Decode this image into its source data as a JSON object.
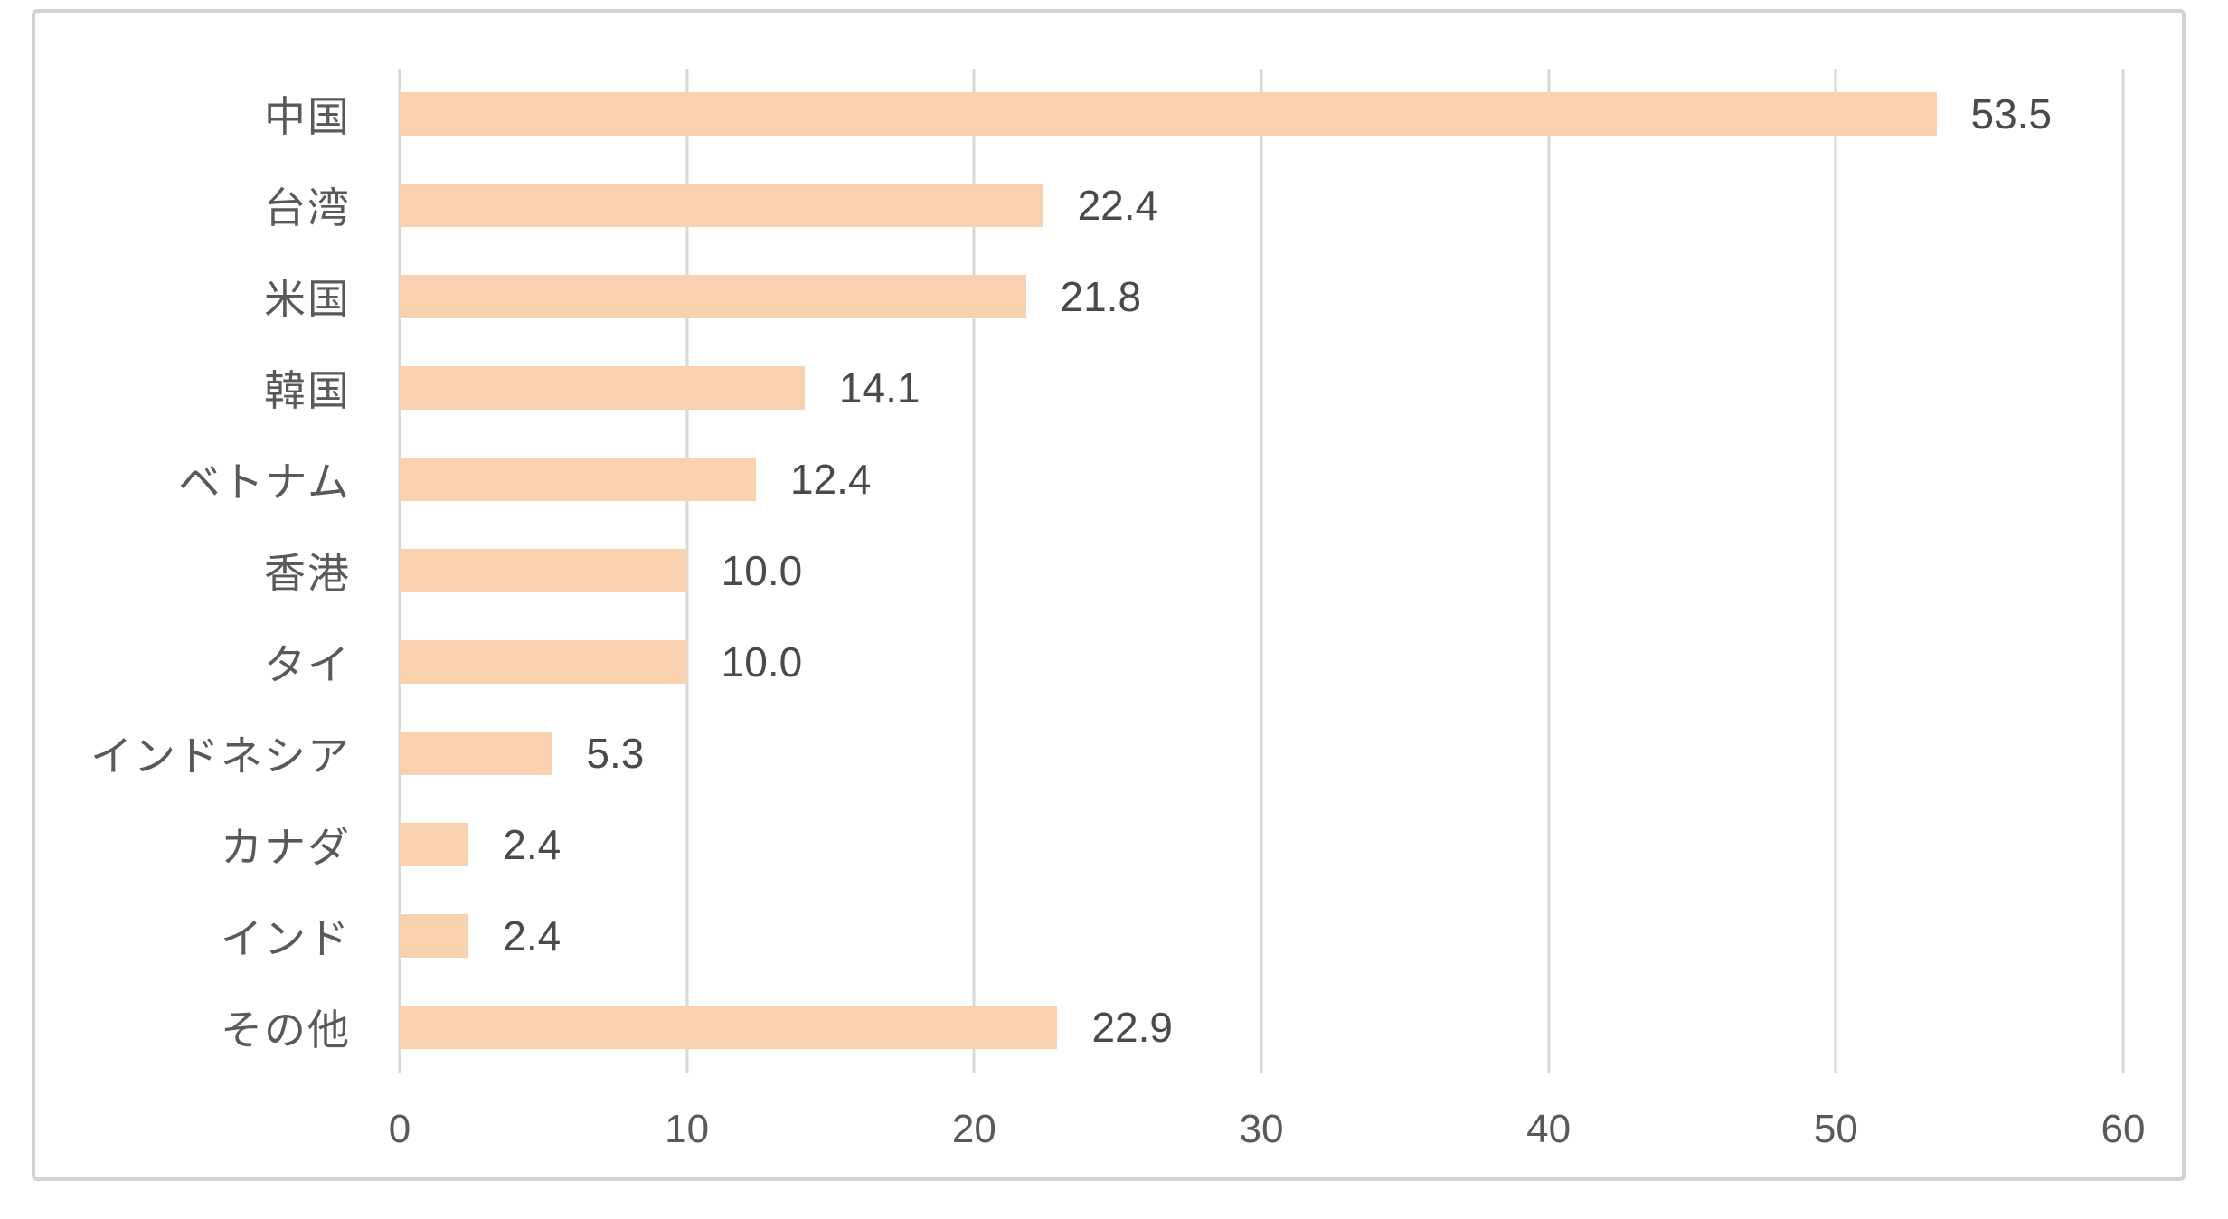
{
  "chart_data": {
    "type": "bar",
    "orientation": "horizontal",
    "title": "",
    "xlabel": "",
    "ylabel": "",
    "categories": [
      "中国",
      "台湾",
      "米国",
      "韓国",
      "ベトナム",
      "香港",
      "タイ",
      "インドネシア",
      "カナダ",
      "インド",
      "その他"
    ],
    "values": [
      53.5,
      22.4,
      21.8,
      14.1,
      12.4,
      10.0,
      10.0,
      5.3,
      2.4,
      2.4,
      22.9
    ],
    "value_labels": [
      "53.5",
      "22.4",
      "21.8",
      "14.1",
      "12.4",
      "10.0",
      "10.0",
      "5.3",
      "2.4",
      "2.4",
      "22.9"
    ],
    "xlim": [
      0,
      60
    ],
    "x_ticks": [
      0,
      10,
      20,
      30,
      40,
      50,
      60
    ],
    "grid": true,
    "legend": false,
    "colors": {
      "bar_fill": "#F9D1AE",
      "gridline": "#D7D7D7",
      "axis_text": "#595959",
      "value_label_text": "#4A4A4A",
      "frame_border": "#D2D2D2",
      "background": "#FFFFFF"
    }
  }
}
